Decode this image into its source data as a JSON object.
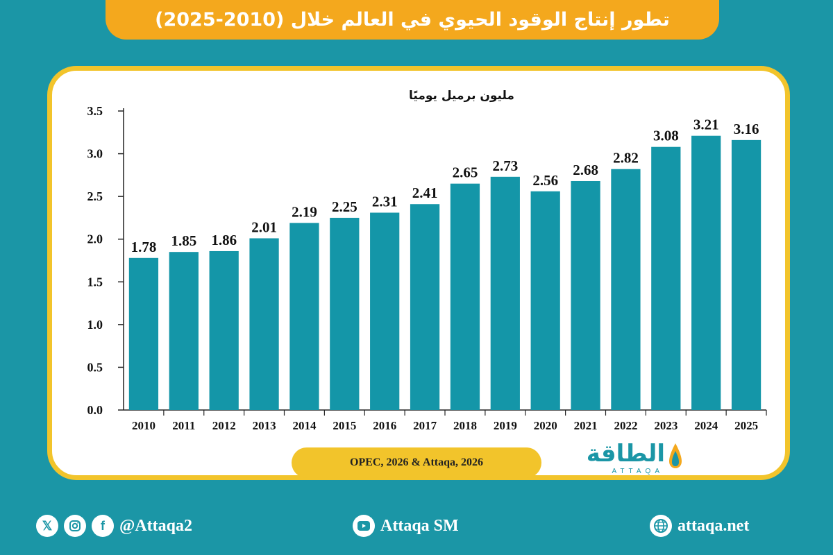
{
  "header": {
    "title": "تطور إنتاج الوقود الحيوي في العالم خلال (2010-2025)"
  },
  "chart_data": {
    "type": "bar",
    "title": "تطور إنتاج الوقود الحيوي في العالم خلال (2010-2025)",
    "ylabel": "مليون برميل يوميًا",
    "xlabel": "",
    "categories": [
      "2010",
      "2011",
      "2012",
      "2013",
      "2014",
      "2015",
      "2016",
      "2017",
      "2018",
      "2019",
      "2020",
      "2021",
      "2022",
      "2023",
      "2024",
      "2025"
    ],
    "values": [
      1.78,
      1.85,
      1.86,
      2.01,
      2.19,
      2.25,
      2.31,
      2.41,
      2.65,
      2.73,
      2.56,
      2.68,
      2.82,
      3.08,
      3.21,
      3.16
    ],
    "value_labels": [
      "1.78",
      "1.85",
      "1.86",
      "2.01",
      "2.19",
      "2.25",
      "2.31",
      "2.41",
      "2.65",
      "2.73",
      "2.56",
      "2.68",
      "2.82",
      "3.08",
      "3.21",
      "3.16"
    ],
    "ylim": [
      0,
      3.5
    ],
    "yticks": [
      "0.0",
      "0.5",
      "1.0",
      "1.5",
      "2.0",
      "2.5",
      "3.0",
      "3.5"
    ],
    "grid": false,
    "bar_color": "#1496a8"
  },
  "source": "OPEC, 2026 & Attaqa, 2026",
  "logo": {
    "arabic": "الطاقة",
    "latin": "ATTAQA"
  },
  "footer": {
    "social_handle": "@Attaqa2",
    "youtube": "Attaqa SM",
    "website": "attaqa.net",
    "icons": [
      "x-icon",
      "instagram-icon",
      "facebook-icon",
      "youtube-icon",
      "globe-icon"
    ]
  },
  "colors": {
    "background": "#1b96a6",
    "accent": "#f4a81d",
    "border": "#f2c42b"
  }
}
